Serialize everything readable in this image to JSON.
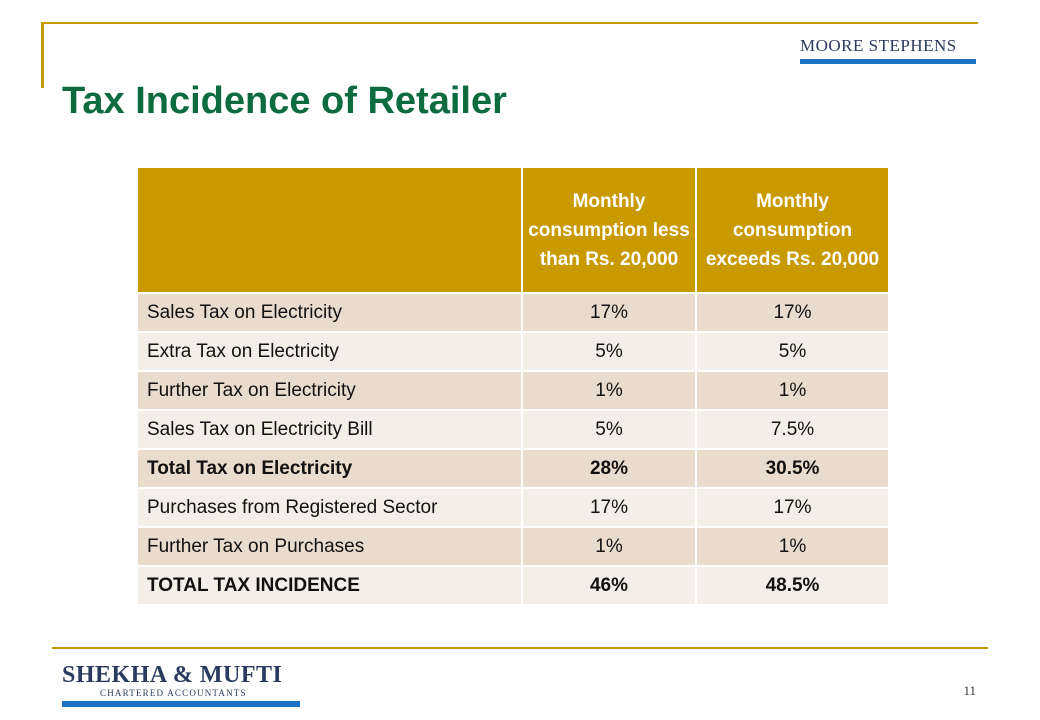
{
  "header": {
    "brand": "MOORE STEPHENS",
    "title": "Tax Incidence of Retailer"
  },
  "table": {
    "columns": [
      "",
      "Monthly consumption less than Rs. 20,000",
      "Monthly consumption exceeds Rs. 20,000"
    ],
    "rows": [
      {
        "label": "Sales Tax on Electricity",
        "less": "17%",
        "exceeds": "17%",
        "bold": false
      },
      {
        "label": "Extra Tax on Electricity",
        "less": "5%",
        "exceeds": "5%",
        "bold": false
      },
      {
        "label": "Further Tax on Electricity",
        "less": "1%",
        "exceeds": "1%",
        "bold": false
      },
      {
        "label": "Sales Tax on Electricity Bill",
        "less": "5%",
        "exceeds": "7.5%",
        "bold": false
      },
      {
        "label": "Total Tax on Electricity",
        "less": "28%",
        "exceeds": "30.5%",
        "bold": true
      },
      {
        "label": "Purchases from Registered Sector",
        "less": "17%",
        "exceeds": "17%",
        "bold": false
      },
      {
        "label": "Further Tax on Purchases",
        "less": "1%",
        "exceeds": "1%",
        "bold": false
      },
      {
        "label": "TOTAL TAX INCIDENCE",
        "less": "46%",
        "exceeds": "48.5%",
        "bold": true
      }
    ]
  },
  "footer": {
    "brand": "SHEKHA & MUFTI",
    "brand_sub": "CHARTERED ACCOUNTANTS",
    "page_number": "11"
  },
  "colors": {
    "title": "#0c6b3f",
    "header_fill": "#c99a00",
    "row_odd": "#e9dccd",
    "row_even": "#f4eee8",
    "brand_blue": "#1d74c6"
  }
}
